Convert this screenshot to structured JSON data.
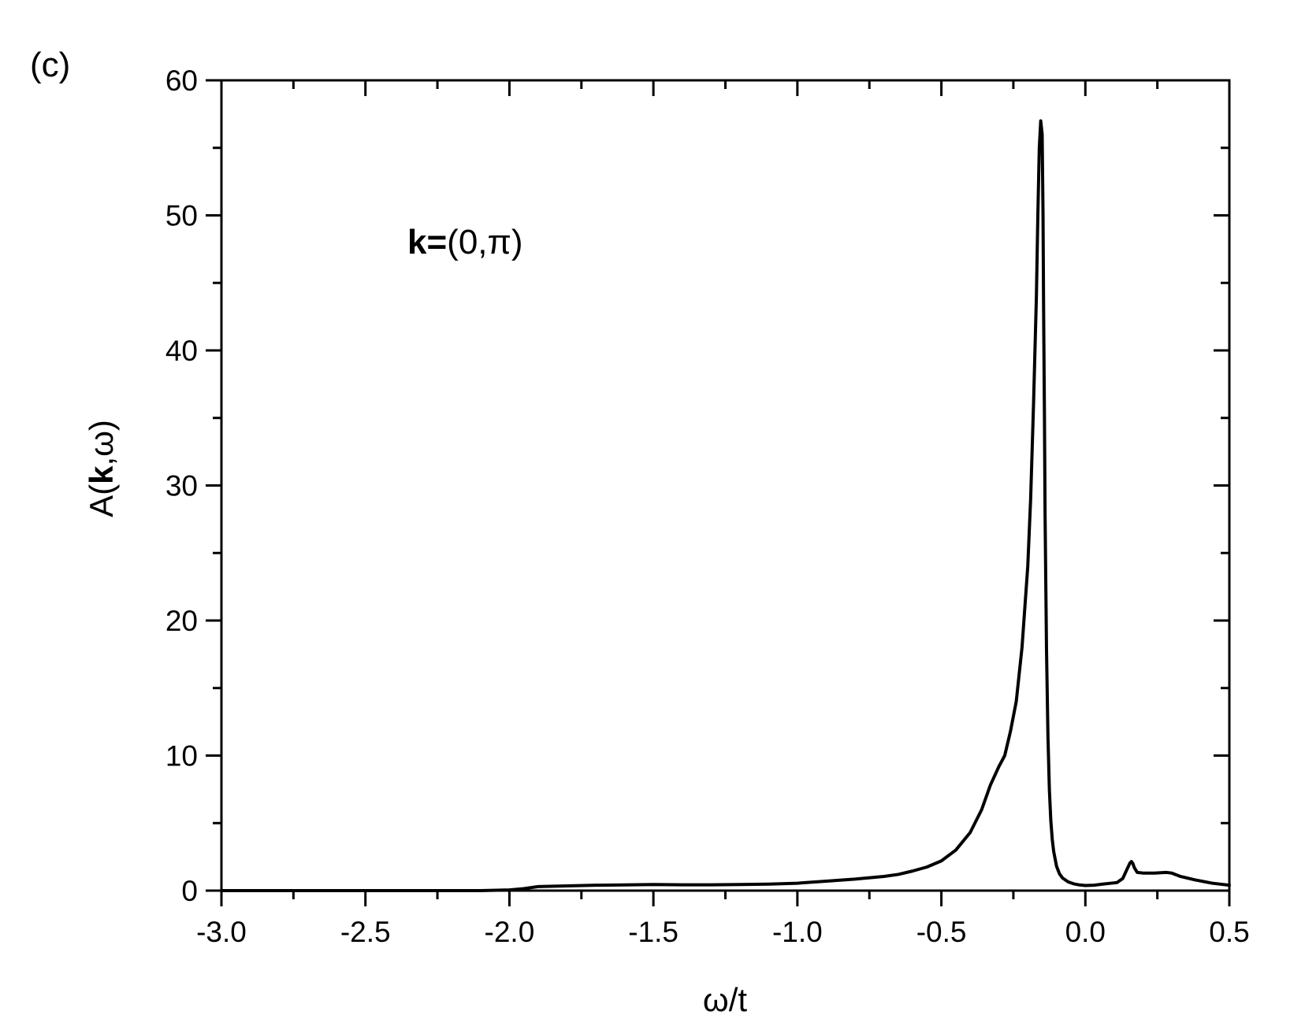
{
  "panel_label": "(c)",
  "chart_data": {
    "type": "line",
    "title": "",
    "xlabel": {
      "main": "ω/t"
    },
    "ylabel": {
      "prefix": "A(",
      "bold": "k",
      "suffix": ",ω)"
    },
    "xlim": [
      -3.0,
      0.5
    ],
    "ylim": [
      0,
      60
    ],
    "xticks": [
      -3.0,
      -2.5,
      -2.0,
      -1.5,
      -1.0,
      -0.5,
      0.0,
      0.5
    ],
    "xtick_labels": [
      "-3.0",
      "-2.5",
      "-2.0",
      "-1.5",
      "-1.0",
      "-0.5",
      "0.0",
      "0.5"
    ],
    "yticks": [
      0,
      10,
      20,
      30,
      40,
      50,
      60
    ],
    "ytick_labels": [
      "0",
      "10",
      "20",
      "30",
      "40",
      "50",
      "60"
    ],
    "annotation": {
      "bold": "k=",
      "rest": "(0,π)"
    },
    "series": [
      {
        "color": "#000000",
        "x": [
          -3.0,
          -2.1,
          -2.0,
          -1.95,
          -1.9,
          -1.8,
          -1.7,
          -1.6,
          -1.5,
          -1.4,
          -1.3,
          -1.2,
          -1.1,
          -1.0,
          -0.9,
          -0.8,
          -0.7,
          -0.65,
          -0.6,
          -0.55,
          -0.5,
          -0.45,
          -0.4,
          -0.36,
          -0.33,
          -0.3,
          -0.28,
          -0.26,
          -0.24,
          -0.22,
          -0.2,
          -0.19,
          -0.18,
          -0.17,
          -0.165,
          -0.16,
          -0.155,
          -0.15,
          -0.147,
          -0.145,
          -0.142,
          -0.14,
          -0.135,
          -0.13,
          -0.125,
          -0.12,
          -0.115,
          -0.11,
          -0.1,
          -0.09,
          -0.08,
          -0.06,
          -0.04,
          -0.02,
          0.0,
          0.03,
          0.06,
          0.09,
          0.11,
          0.13,
          0.145,
          0.155,
          0.16,
          0.165,
          0.17,
          0.18,
          0.2,
          0.24,
          0.28,
          0.3,
          0.33,
          0.38,
          0.44,
          0.5
        ],
        "y": [
          0,
          0,
          0.05,
          0.15,
          0.3,
          0.35,
          0.4,
          0.42,
          0.45,
          0.43,
          0.43,
          0.45,
          0.48,
          0.55,
          0.7,
          0.85,
          1.05,
          1.2,
          1.45,
          1.75,
          2.2,
          3.0,
          4.3,
          6.0,
          7.8,
          9.2,
          10.0,
          11.8,
          14.0,
          18.0,
          24.0,
          29.0,
          36.0,
          44.0,
          50.0,
          55.0,
          57.0,
          56.0,
          50.0,
          43.0,
          35.0,
          28.0,
          18.0,
          11.5,
          7.5,
          5.2,
          3.8,
          2.9,
          1.8,
          1.25,
          0.95,
          0.65,
          0.5,
          0.42,
          0.38,
          0.4,
          0.48,
          0.55,
          0.6,
          0.9,
          1.6,
          2.05,
          2.15,
          2.0,
          1.7,
          1.35,
          1.3,
          1.3,
          1.35,
          1.3,
          1.05,
          0.8,
          0.55,
          0.4
        ]
      }
    ]
  }
}
